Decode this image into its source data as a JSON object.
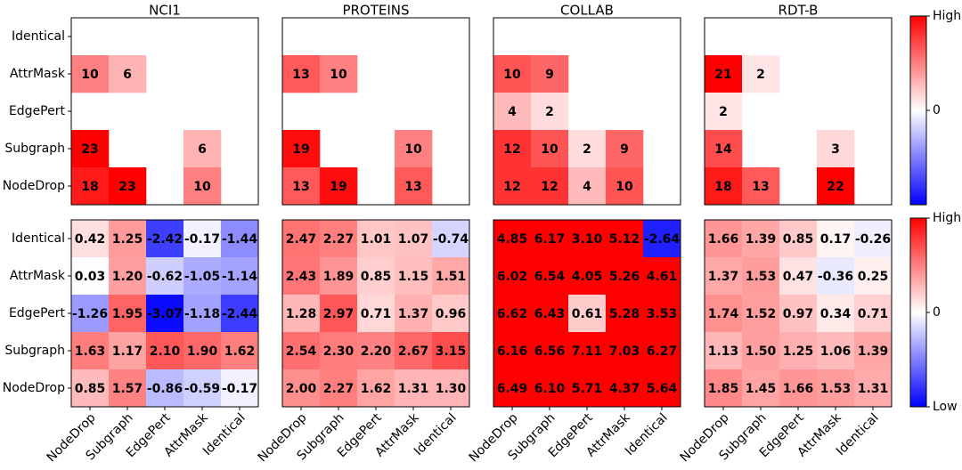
{
  "chart_data": [
    {
      "type": "heatmap",
      "title": "NCI1",
      "y_categories": [
        "Identical",
        "AttrMask",
        "EdgePert",
        "Subgraph",
        "NodeDrop"
      ],
      "values": [
        [
          null,
          null,
          null,
          null,
          null
        ],
        [
          10,
          6,
          null,
          null,
          null
        ],
        [
          null,
          null,
          null,
          null,
          null
        ],
        [
          23,
          null,
          null,
          6,
          null
        ],
        [
          18,
          23,
          null,
          10,
          null
        ]
      ],
      "zlim": [
        -20,
        20
      ]
    },
    {
      "type": "heatmap",
      "title": "PROTEINS",
      "values": [
        [
          null,
          null,
          null,
          null,
          null
        ],
        [
          13,
          10,
          null,
          null,
          null
        ],
        [
          null,
          null,
          null,
          null,
          null
        ],
        [
          19,
          null,
          null,
          10,
          null
        ],
        [
          13,
          19,
          null,
          13,
          null
        ]
      ],
      "zlim": [
        -20,
        20
      ]
    },
    {
      "type": "heatmap",
      "title": "COLLAB",
      "values": [
        [
          null,
          null,
          null,
          null,
          null
        ],
        [
          10,
          9,
          null,
          null,
          null
        ],
        [
          4,
          2,
          null,
          null,
          null
        ],
        [
          12,
          10,
          2,
          9,
          null
        ],
        [
          12,
          12,
          4,
          10,
          null
        ]
      ],
      "zlim": [
        -15,
        15
      ]
    },
    {
      "type": "heatmap",
      "title": "RDT-B",
      "values": [
        [
          null,
          null,
          null,
          null,
          null
        ],
        [
          21,
          2,
          null,
          null,
          null
        ],
        [
          2,
          null,
          null,
          null,
          null
        ],
        [
          14,
          null,
          null,
          3,
          null
        ],
        [
          18,
          13,
          null,
          22,
          null
        ]
      ],
      "zlim": [
        -20,
        20
      ],
      "colorbar": {
        "colormap": [
          "#0000ff",
          "#ffffff",
          "#ff0000"
        ],
        "zlim": [
          -1,
          1
        ],
        "ticks": [
          {
            "value": 1,
            "label": "High"
          },
          0
        ]
      }
    },
    {
      "type": "heatmap",
      "y_categories": [
        "Identical",
        "AttrMask",
        "EdgePert",
        "Subgraph",
        "NodeDrop"
      ],
      "x_categories": [
        "NodeDrop",
        "Subgraph",
        "EdgePert",
        "AttrMask",
        "Identical"
      ],
      "values": [
        [
          0.42,
          1.25,
          -2.42,
          -0.17,
          -1.44
        ],
        [
          0.03,
          1.2,
          -0.62,
          -1.05,
          -1.14
        ],
        [
          -1.26,
          1.95,
          -3.07,
          -1.18,
          -2.44
        ],
        [
          1.63,
          1.17,
          2.1,
          1.9,
          1.62
        ],
        [
          0.85,
          1.57,
          -0.86,
          -0.59,
          -0.17
        ]
      ],
      "value_labels": [
        [
          "0.42",
          "1.25",
          "-2.42",
          "-0.17",
          "-1.44"
        ],
        [
          "0.03",
          "1.20",
          "-0.62",
          "-1.05",
          "-1.14"
        ],
        [
          "-1.26",
          "1.95",
          "-3.07",
          "-1.18",
          "-2.44"
        ],
        [
          "1.63",
          "1.17",
          "2.10",
          "1.90",
          "1.62"
        ],
        [
          "0.85",
          "1.57",
          "-0.86",
          "-0.59",
          "-0.17"
        ]
      ],
      "zlim": [
        -3.2,
        3.2
      ]
    },
    {
      "type": "heatmap",
      "x_categories": [
        "NodeDrop",
        "Subgraph",
        "EdgePert",
        "AttrMask",
        "Identical"
      ],
      "values": [
        [
          2.47,
          2.27,
          1.01,
          1.07,
          -0.74
        ],
        [
          2.43,
          1.89,
          0.85,
          1.15,
          1.51
        ],
        [
          1.28,
          2.97,
          0.71,
          1.37,
          0.96
        ],
        [
          2.54,
          2.3,
          2.2,
          2.67,
          3.15
        ],
        [
          2.0,
          2.27,
          1.62,
          1.31,
          1.3
        ]
      ],
      "value_labels": [
        [
          "2.47",
          "2.27",
          "1.01",
          "1.07",
          "-0.74"
        ],
        [
          "2.43",
          "1.89",
          "0.85",
          "1.15",
          "1.51"
        ],
        [
          "1.28",
          "2.97",
          "0.71",
          "1.37",
          "0.96"
        ],
        [
          "2.54",
          "2.30",
          "2.20",
          "2.67",
          "3.15"
        ],
        [
          "2.00",
          "2.27",
          "1.62",
          "1.31",
          "1.30"
        ]
      ],
      "zlim": [
        -4.5,
        4.5
      ]
    },
    {
      "type": "heatmap",
      "x_categories": [
        "NodeDrop",
        "Subgraph",
        "EdgePert",
        "AttrMask",
        "Identical"
      ],
      "values": [
        [
          4.85,
          6.17,
          3.1,
          5.12,
          -2.64
        ],
        [
          6.02,
          6.54,
          4.05,
          5.26,
          4.61
        ],
        [
          6.62,
          6.43,
          0.61,
          5.28,
          3.53
        ],
        [
          6.16,
          6.56,
          7.11,
          7.03,
          6.27
        ],
        [
          6.49,
          6.1,
          5.71,
          4.37,
          5.64
        ]
      ],
      "value_labels": [
        [
          "4.85",
          "6.17",
          "3.10",
          "5.12",
          "-2.64"
        ],
        [
          "6.02",
          "6.54",
          "4.05",
          "5.26",
          "4.61"
        ],
        [
          "6.62",
          "6.43",
          "0.61",
          "5.28",
          "3.53"
        ],
        [
          "6.16",
          "6.56",
          "7.11",
          "7.03",
          "6.27"
        ],
        [
          "6.49",
          "6.10",
          "5.71",
          "4.37",
          "5.64"
        ]
      ],
      "zlim": [
        -3,
        3
      ]
    },
    {
      "type": "heatmap",
      "x_categories": [
        "NodeDrop",
        "Subgraph",
        "EdgePert",
        "AttrMask",
        "Identical"
      ],
      "values": [
        [
          1.66,
          1.39,
          0.85,
          0.17,
          -0.26
        ],
        [
          1.37,
          1.53,
          0.47,
          -0.36,
          0.25
        ],
        [
          1.74,
          1.52,
          0.97,
          0.34,
          0.71
        ],
        [
          1.13,
          1.5,
          1.25,
          1.06,
          1.39
        ],
        [
          1.85,
          1.45,
          1.66,
          1.53,
          1.31
        ]
      ],
      "value_labels": [
        [
          "1.66",
          "1.39",
          "0.85",
          "0.17",
          "-0.26"
        ],
        [
          "1.37",
          "1.53",
          "0.47",
          "-0.36",
          "0.25"
        ],
        [
          "1.74",
          "1.52",
          "0.97",
          "0.34",
          "0.71"
        ],
        [
          "1.13",
          "1.50",
          "1.25",
          "1.06",
          "1.39"
        ],
        [
          "1.85",
          "1.45",
          "1.66",
          "1.53",
          "1.31"
        ]
      ],
      "zlim": [
        -4,
        4
      ],
      "colorbar": {
        "colormap": [
          "#0000ff",
          "#ffffff",
          "#ff0000"
        ],
        "zlim": [
          -1,
          1
        ],
        "ticks": [
          {
            "value": 1,
            "label": "High"
          },
          0,
          {
            "value": -1,
            "label": "Low"
          }
        ]
      }
    }
  ]
}
